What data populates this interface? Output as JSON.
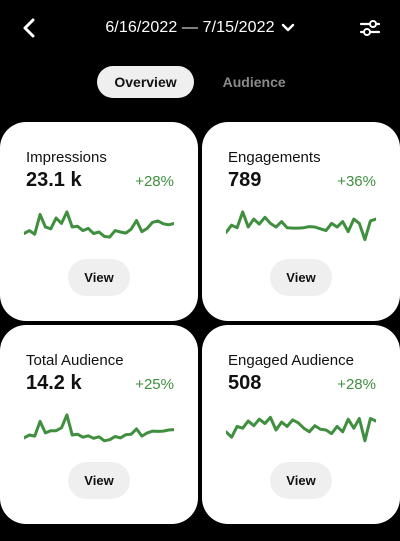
{
  "header": {
    "back_icon": "chevron-left-icon",
    "date_range": "6/16/2022 — 7/15/2022",
    "dropdown_icon": "chevron-down-icon",
    "filter_icon": "sliders-icon"
  },
  "tabs": [
    {
      "label": "Overview",
      "active": true
    },
    {
      "label": "Audience",
      "active": false
    }
  ],
  "colors": {
    "accent_green": "#3f8f3f",
    "card_bg": "#ffffff",
    "page_bg": "#000000",
    "pill_bg": "#efefef"
  },
  "cards": [
    {
      "label": "Impressions",
      "value": "23.1 k",
      "change": "+28%",
      "button": "View",
      "trend": [
        0.32,
        0.4,
        0.3,
        0.85,
        0.5,
        0.45,
        0.75,
        0.6,
        0.92,
        0.5,
        0.52,
        0.4,
        0.46,
        0.32,
        0.36,
        0.24,
        0.22,
        0.4,
        0.36,
        0.33,
        0.44,
        0.68,
        0.37,
        0.46,
        0.63,
        0.67,
        0.59,
        0.56,
        0.6
      ]
    },
    {
      "label": "Engagements",
      "value": "789",
      "change": "+36%",
      "button": "View",
      "trend": [
        0.35,
        0.55,
        0.48,
        0.92,
        0.5,
        0.72,
        0.58,
        0.77,
        0.6,
        0.5,
        0.65,
        0.48,
        0.47,
        0.47,
        0.48,
        0.51,
        0.5,
        0.45,
        0.4,
        0.6,
        0.5,
        0.65,
        0.37,
        0.72,
        0.6,
        0.15,
        0.67,
        0.72
      ]
    },
    {
      "label": "Total Audience",
      "value": "14.2 k",
      "change": "+25%",
      "button": "View",
      "trend": [
        0.28,
        0.36,
        0.33,
        0.74,
        0.42,
        0.48,
        0.48,
        0.56,
        0.92,
        0.36,
        0.38,
        0.3,
        0.34,
        0.27,
        0.31,
        0.2,
        0.23,
        0.32,
        0.28,
        0.37,
        0.38,
        0.53,
        0.33,
        0.42,
        0.47,
        0.46,
        0.47,
        0.5,
        0.51
      ]
    },
    {
      "label": "Engaged Audience",
      "value": "508",
      "change": "+28%",
      "button": "View",
      "trend": [
        0.45,
        0.3,
        0.6,
        0.55,
        0.75,
        0.62,
        0.8,
        0.68,
        0.85,
        0.5,
        0.72,
        0.6,
        0.78,
        0.7,
        0.55,
        0.45,
        0.62,
        0.52,
        0.5,
        0.4,
        0.6,
        0.45,
        0.8,
        0.55,
        0.82,
        0.2,
        0.82,
        0.75
      ]
    }
  ]
}
